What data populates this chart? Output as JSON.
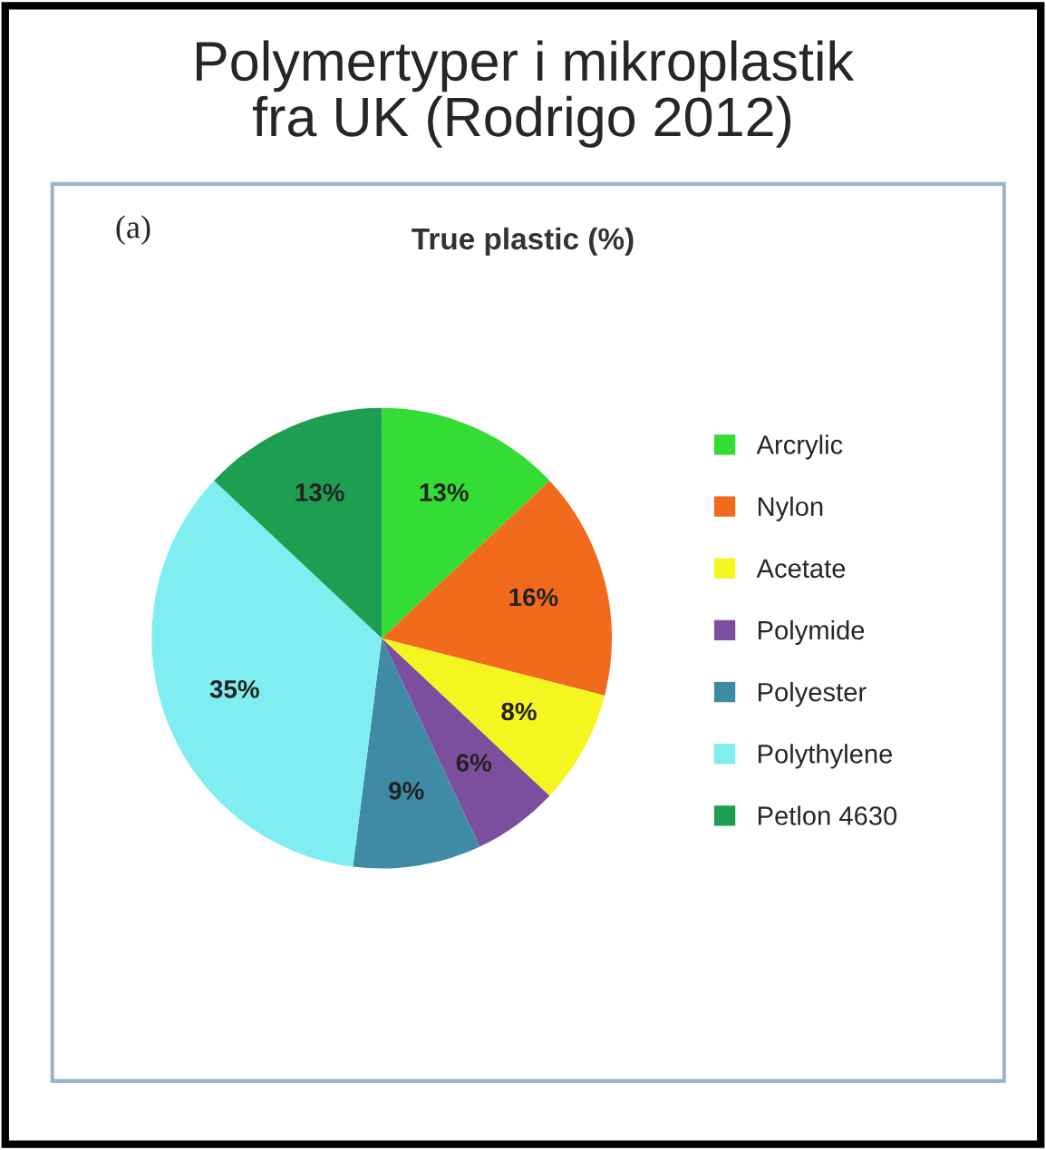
{
  "chart_data": {
    "type": "pie",
    "title": "Polymertyper i mikroplastik\nfra UK (Rodrigo 2012)",
    "subtitle": "True plastic (%)",
    "annotations": [
      "(a)"
    ],
    "categories": [
      "Arcrylic",
      "Nylon",
      "Acetate",
      "Polymide",
      "Polyester",
      "Polythylene",
      "Petlon 4630"
    ],
    "values": [
      13,
      16,
      8,
      6,
      9,
      35,
      13
    ],
    "value_labels": [
      "13%",
      "16%",
      "8%",
      "6%",
      "9%",
      "35%",
      "13%"
    ],
    "colors": [
      "#33dd33",
      "#f26b1d",
      "#f5f520",
      "#7b4f9d",
      "#3f8aa5",
      "#80eef0",
      "#1e9e50"
    ],
    "legend": "right"
  }
}
